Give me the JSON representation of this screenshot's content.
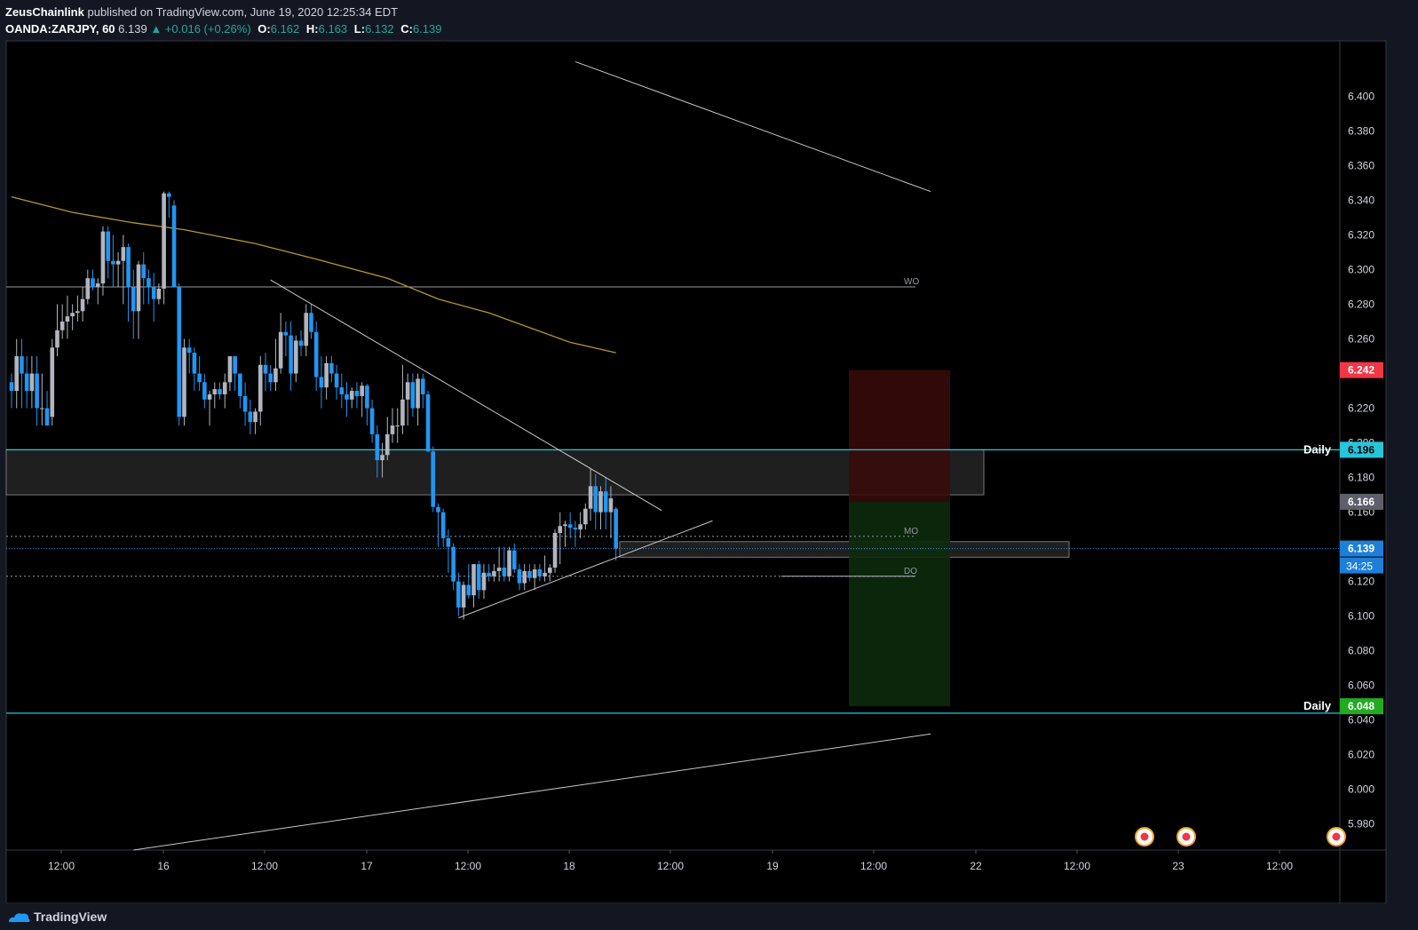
{
  "header": {
    "author": "ZeusChainlink",
    "published_text": "published on TradingView.com, June 19, 2020 12:25:34 EDT",
    "symbol": "OANDA:ZARJPY, 60",
    "last": "6.139",
    "change": "▲ +0.016 (+0.26%)",
    "o_label": "O:",
    "o_value": "6.162",
    "h_label": "H:",
    "h_value": "6.163",
    "l_label": "L:",
    "l_value": "6.132",
    "c_label": "C:",
    "c_value": "6.139"
  },
  "footer": {
    "brand": "TradingView"
  },
  "colors": {
    "background": "#000000",
    "up_candle": "#b2b5be",
    "down_candle": "#2196f3",
    "ma": "#b8962e",
    "daily_line": "#26c6da",
    "stop_zone": "#3b0a0a",
    "target_zone": "#0c2a0c",
    "label_red": "#f23645",
    "label_green": "#22ab22",
    "label_blue": "#1e7fd8",
    "label_gray": "#5d606b"
  },
  "chart_data": {
    "type": "candlestick",
    "y_axis": {
      "ylim": [
        5.965,
        6.432
      ],
      "ticks": [
        "6.400",
        "6.380",
        "6.360",
        "6.340",
        "6.320",
        "6.300",
        "6.280",
        "6.260",
        "6.240",
        "6.220",
        "6.200",
        "6.180",
        "6.160",
        "6.140",
        "6.120",
        "6.100",
        "6.080",
        "6.060",
        "6.040",
        "6.020",
        "6.000",
        "5.980"
      ]
    },
    "x_axis": {
      "ticks": [
        "12:00",
        "16",
        "12:00",
        "17",
        "12:00",
        "18",
        "12:00",
        "19",
        "12:00",
        "22",
        "12:00",
        "23",
        "12:00"
      ]
    },
    "price_labels": [
      {
        "value": 6.242,
        "text": "6.242",
        "color": "#f23645"
      },
      {
        "value": 6.196,
        "text": "6.196",
        "color": "#26c6da",
        "side_text": "Daily"
      },
      {
        "value": 6.166,
        "text": "6.166",
        "color": "#5d606b"
      },
      {
        "value": 6.139,
        "text": "6.139",
        "color": "#1e7fd8"
      },
      {
        "value": 6.048,
        "text": "6.048",
        "color": "#22ab22",
        "side_text": "Daily"
      }
    ],
    "countdown": "34:25",
    "levels": [
      {
        "name": "WO",
        "value": 6.29
      },
      {
        "name": "MO",
        "value": 6.146
      },
      {
        "name": "DO",
        "value": 6.123
      }
    ],
    "daily_levels": [
      6.196,
      6.044
    ],
    "zones": [
      {
        "label": "daily-resistance-zone",
        "top": 6.196,
        "bottom": 6.17
      },
      {
        "label": "support-zone",
        "top": 6.143,
        "bottom": 6.134
      }
    ],
    "position": {
      "entry": 6.166,
      "stop": 6.242,
      "target": 6.048
    },
    "ohlc": [
      [
        6.235,
        6.24,
        6.22,
        6.23
      ],
      [
        6.23,
        6.26,
        6.22,
        6.25
      ],
      [
        6.25,
        6.26,
        6.22,
        6.24
      ],
      [
        6.24,
        6.25,
        6.22,
        6.23
      ],
      [
        6.23,
        6.25,
        6.22,
        6.24
      ],
      [
        6.24,
        6.25,
        6.21,
        6.22
      ],
      [
        6.22,
        6.24,
        6.21,
        6.22
      ],
      [
        6.22,
        6.23,
        6.21,
        6.21
      ],
      [
        6.215,
        6.26,
        6.21,
        6.255
      ],
      [
        6.255,
        6.28,
        6.25,
        6.265
      ],
      [
        6.265,
        6.28,
        6.26,
        6.27
      ],
      [
        6.27,
        6.285,
        6.26,
        6.273
      ],
      [
        6.273,
        6.28,
        6.265,
        6.275
      ],
      [
        6.275,
        6.285,
        6.27,
        6.276
      ],
      [
        6.276,
        6.29,
        6.27,
        6.283
      ],
      [
        6.283,
        6.3,
        6.28,
        6.295
      ],
      [
        6.295,
        6.3,
        6.288,
        6.29
      ],
      [
        6.29,
        6.295,
        6.28,
        6.292
      ],
      [
        6.292,
        6.325,
        6.285,
        6.322
      ],
      [
        6.322,
        6.325,
        6.295,
        6.305
      ],
      [
        6.305,
        6.32,
        6.29,
        6.303
      ],
      [
        6.303,
        6.31,
        6.29,
        6.305
      ],
      [
        6.305,
        6.32,
        6.28,
        6.313
      ],
      [
        6.313,
        6.315,
        6.27,
        6.29
      ],
      [
        6.29,
        6.3,
        6.26,
        6.276
      ],
      [
        6.276,
        6.305,
        6.26,
        6.303
      ],
      [
        6.303,
        6.31,
        6.28,
        6.295
      ],
      [
        6.295,
        6.3,
        6.28,
        6.29
      ],
      [
        6.29,
        6.298,
        6.27,
        6.283
      ],
      [
        6.283,
        6.292,
        6.28,
        6.289
      ],
      [
        6.289,
        6.345,
        6.28,
        6.344
      ],
      [
        6.344,
        6.345,
        6.33,
        6.342
      ],
      [
        6.337,
        6.34,
        6.29,
        6.29
      ],
      [
        6.29,
        6.292,
        6.21,
        6.215
      ],
      [
        6.215,
        6.26,
        6.21,
        6.255
      ],
      [
        6.255,
        6.26,
        6.24,
        6.252
      ],
      [
        6.252,
        6.255,
        6.23,
        6.24
      ],
      [
        6.24,
        6.25,
        6.23,
        6.235
      ],
      [
        6.235,
        6.24,
        6.22,
        6.225
      ],
      [
        6.225,
        6.23,
        6.21,
        6.228
      ],
      [
        6.228,
        6.235,
        6.22,
        6.231
      ],
      [
        6.231,
        6.235,
        6.225,
        6.228
      ],
      [
        6.228,
        6.24,
        6.22,
        6.235
      ],
      [
        6.235,
        6.25,
        6.23,
        6.25
      ],
      [
        6.25,
        6.25,
        6.23,
        6.24
      ],
      [
        6.24,
        6.24,
        6.22,
        6.227
      ],
      [
        6.227,
        6.235,
        6.21,
        6.218
      ],
      [
        6.218,
        6.225,
        6.205,
        6.212
      ],
      [
        6.212,
        6.22,
        6.205,
        6.218
      ],
      [
        6.218,
        6.25,
        6.21,
        6.245
      ],
      [
        6.245,
        6.252,
        6.23,
        6.24
      ],
      [
        6.24,
        6.245,
        6.23,
        6.235
      ],
      [
        6.235,
        6.26,
        6.23,
        6.243
      ],
      [
        6.243,
        6.275,
        6.24,
        6.264
      ],
      [
        6.264,
        6.27,
        6.25,
        6.262
      ],
      [
        6.262,
        6.27,
        6.23,
        6.24
      ],
      [
        6.24,
        6.262,
        6.235,
        6.259
      ],
      [
        6.259,
        6.265,
        6.25,
        6.256
      ],
      [
        6.256,
        6.28,
        6.25,
        6.275
      ],
      [
        6.275,
        6.28,
        6.26,
        6.264
      ],
      [
        6.264,
        6.27,
        6.23,
        6.238
      ],
      [
        6.238,
        6.25,
        6.22,
        6.232
      ],
      [
        6.232,
        6.25,
        6.225,
        6.246
      ],
      [
        6.246,
        6.25,
        6.235,
        6.24
      ],
      [
        6.24,
        6.245,
        6.225,
        6.232
      ],
      [
        6.232,
        6.24,
        6.22,
        6.228
      ],
      [
        6.228,
        6.235,
        6.215,
        6.225
      ],
      [
        6.225,
        6.232,
        6.22,
        6.23
      ],
      [
        6.23,
        6.235,
        6.22,
        6.227
      ],
      [
        6.227,
        6.235,
        6.215,
        6.233
      ],
      [
        6.233,
        6.234,
        6.21,
        6.22
      ],
      [
        6.22,
        6.225,
        6.2,
        6.205
      ],
      [
        6.205,
        6.21,
        6.18,
        6.19
      ],
      [
        6.19,
        6.2,
        6.18,
        6.193
      ],
      [
        6.193,
        6.215,
        6.19,
        6.205
      ],
      [
        6.205,
        6.22,
        6.2,
        6.21
      ],
      [
        6.21,
        6.22,
        6.2,
        6.21
      ],
      [
        6.21,
        6.245,
        6.205,
        6.225
      ],
      [
        6.225,
        6.24,
        6.21,
        6.235
      ],
      [
        6.235,
        6.24,
        6.215,
        6.22
      ],
      [
        6.22,
        6.24,
        6.21,
        6.237
      ],
      [
        6.237,
        6.24,
        6.22,
        6.228
      ],
      [
        6.228,
        6.23,
        6.195,
        6.195
      ],
      [
        6.195,
        6.198,
        6.16,
        6.163
      ],
      [
        6.163,
        6.165,
        6.14,
        6.16
      ],
      [
        6.16,
        6.162,
        6.14,
        6.145
      ],
      [
        6.145,
        6.15,
        6.125,
        6.14
      ],
      [
        6.14,
        6.142,
        6.115,
        6.12
      ],
      [
        6.12,
        6.125,
        6.1,
        6.105
      ],
      [
        6.105,
        6.12,
        6.098,
        6.118
      ],
      [
        6.118,
        6.13,
        6.11,
        6.112
      ],
      [
        6.112,
        6.13,
        6.105,
        6.13
      ],
      [
        6.13,
        6.132,
        6.11,
        6.115
      ],
      [
        6.115,
        6.13,
        6.11,
        6.125
      ],
      [
        6.125,
        6.13,
        6.12,
        6.123
      ],
      [
        6.123,
        6.13,
        6.12,
        6.126
      ],
      [
        6.126,
        6.14,
        6.12,
        6.128
      ],
      [
        6.128,
        6.14,
        6.12,
        6.123
      ],
      [
        6.123,
        6.14,
        6.12,
        6.138
      ],
      [
        6.138,
        6.142,
        6.125,
        6.127
      ],
      [
        6.127,
        6.13,
        6.115,
        6.119
      ],
      [
        6.119,
        6.13,
        6.115,
        6.126
      ],
      [
        6.126,
        6.13,
        6.12,
        6.122
      ],
      [
        6.122,
        6.13,
        6.115,
        6.127
      ],
      [
        6.127,
        6.13,
        6.12,
        6.123
      ],
      [
        6.123,
        6.135,
        6.12,
        6.125
      ],
      [
        6.125,
        6.13,
        6.12,
        6.128
      ],
      [
        6.128,
        6.15,
        6.125,
        6.148
      ],
      [
        6.148,
        6.16,
        6.13,
        6.152
      ],
      [
        6.152,
        6.155,
        6.14,
        6.153
      ],
      [
        6.153,
        6.16,
        6.145,
        6.151
      ],
      [
        6.151,
        6.155,
        6.14,
        6.15
      ],
      [
        6.15,
        6.16,
        6.145,
        6.153
      ],
      [
        6.153,
        6.165,
        6.15,
        6.162
      ],
      [
        6.162,
        6.185,
        6.155,
        6.175
      ],
      [
        6.175,
        6.182,
        6.15,
        6.16
      ],
      [
        6.16,
        6.175,
        6.15,
        6.172
      ],
      [
        6.172,
        6.18,
        6.15,
        6.16
      ],
      [
        6.16,
        6.175,
        6.145,
        6.168
      ],
      [
        6.162,
        6.163,
        6.132,
        6.139
      ]
    ],
    "ma": [
      [
        0,
        6.342
      ],
      [
        12,
        6.333
      ],
      [
        24,
        6.327
      ],
      [
        34,
        6.323
      ],
      [
        48,
        6.315
      ],
      [
        60,
        6.306
      ],
      [
        74,
        6.295
      ],
      [
        84,
        6.283
      ],
      [
        94,
        6.275
      ],
      [
        110,
        6.258
      ],
      [
        119,
        6.252
      ]
    ],
    "trendlines": [
      {
        "name": "descending-trendline",
        "from": [
          51,
          6.294
        ],
        "to": [
          128,
          6.161
        ]
      },
      {
        "name": "ascending-trendline",
        "from": [
          88,
          6.099
        ],
        "to": [
          138,
          6.155
        ]
      },
      {
        "name": "upper-channel-line",
        "from": [
          111,
          6.42
        ],
        "to": [
          181,
          6.345
        ]
      },
      {
        "name": "lower-channel-line",
        "from": [
          24,
          5.965
        ],
        "to": [
          181,
          6.032
        ]
      }
    ]
  }
}
